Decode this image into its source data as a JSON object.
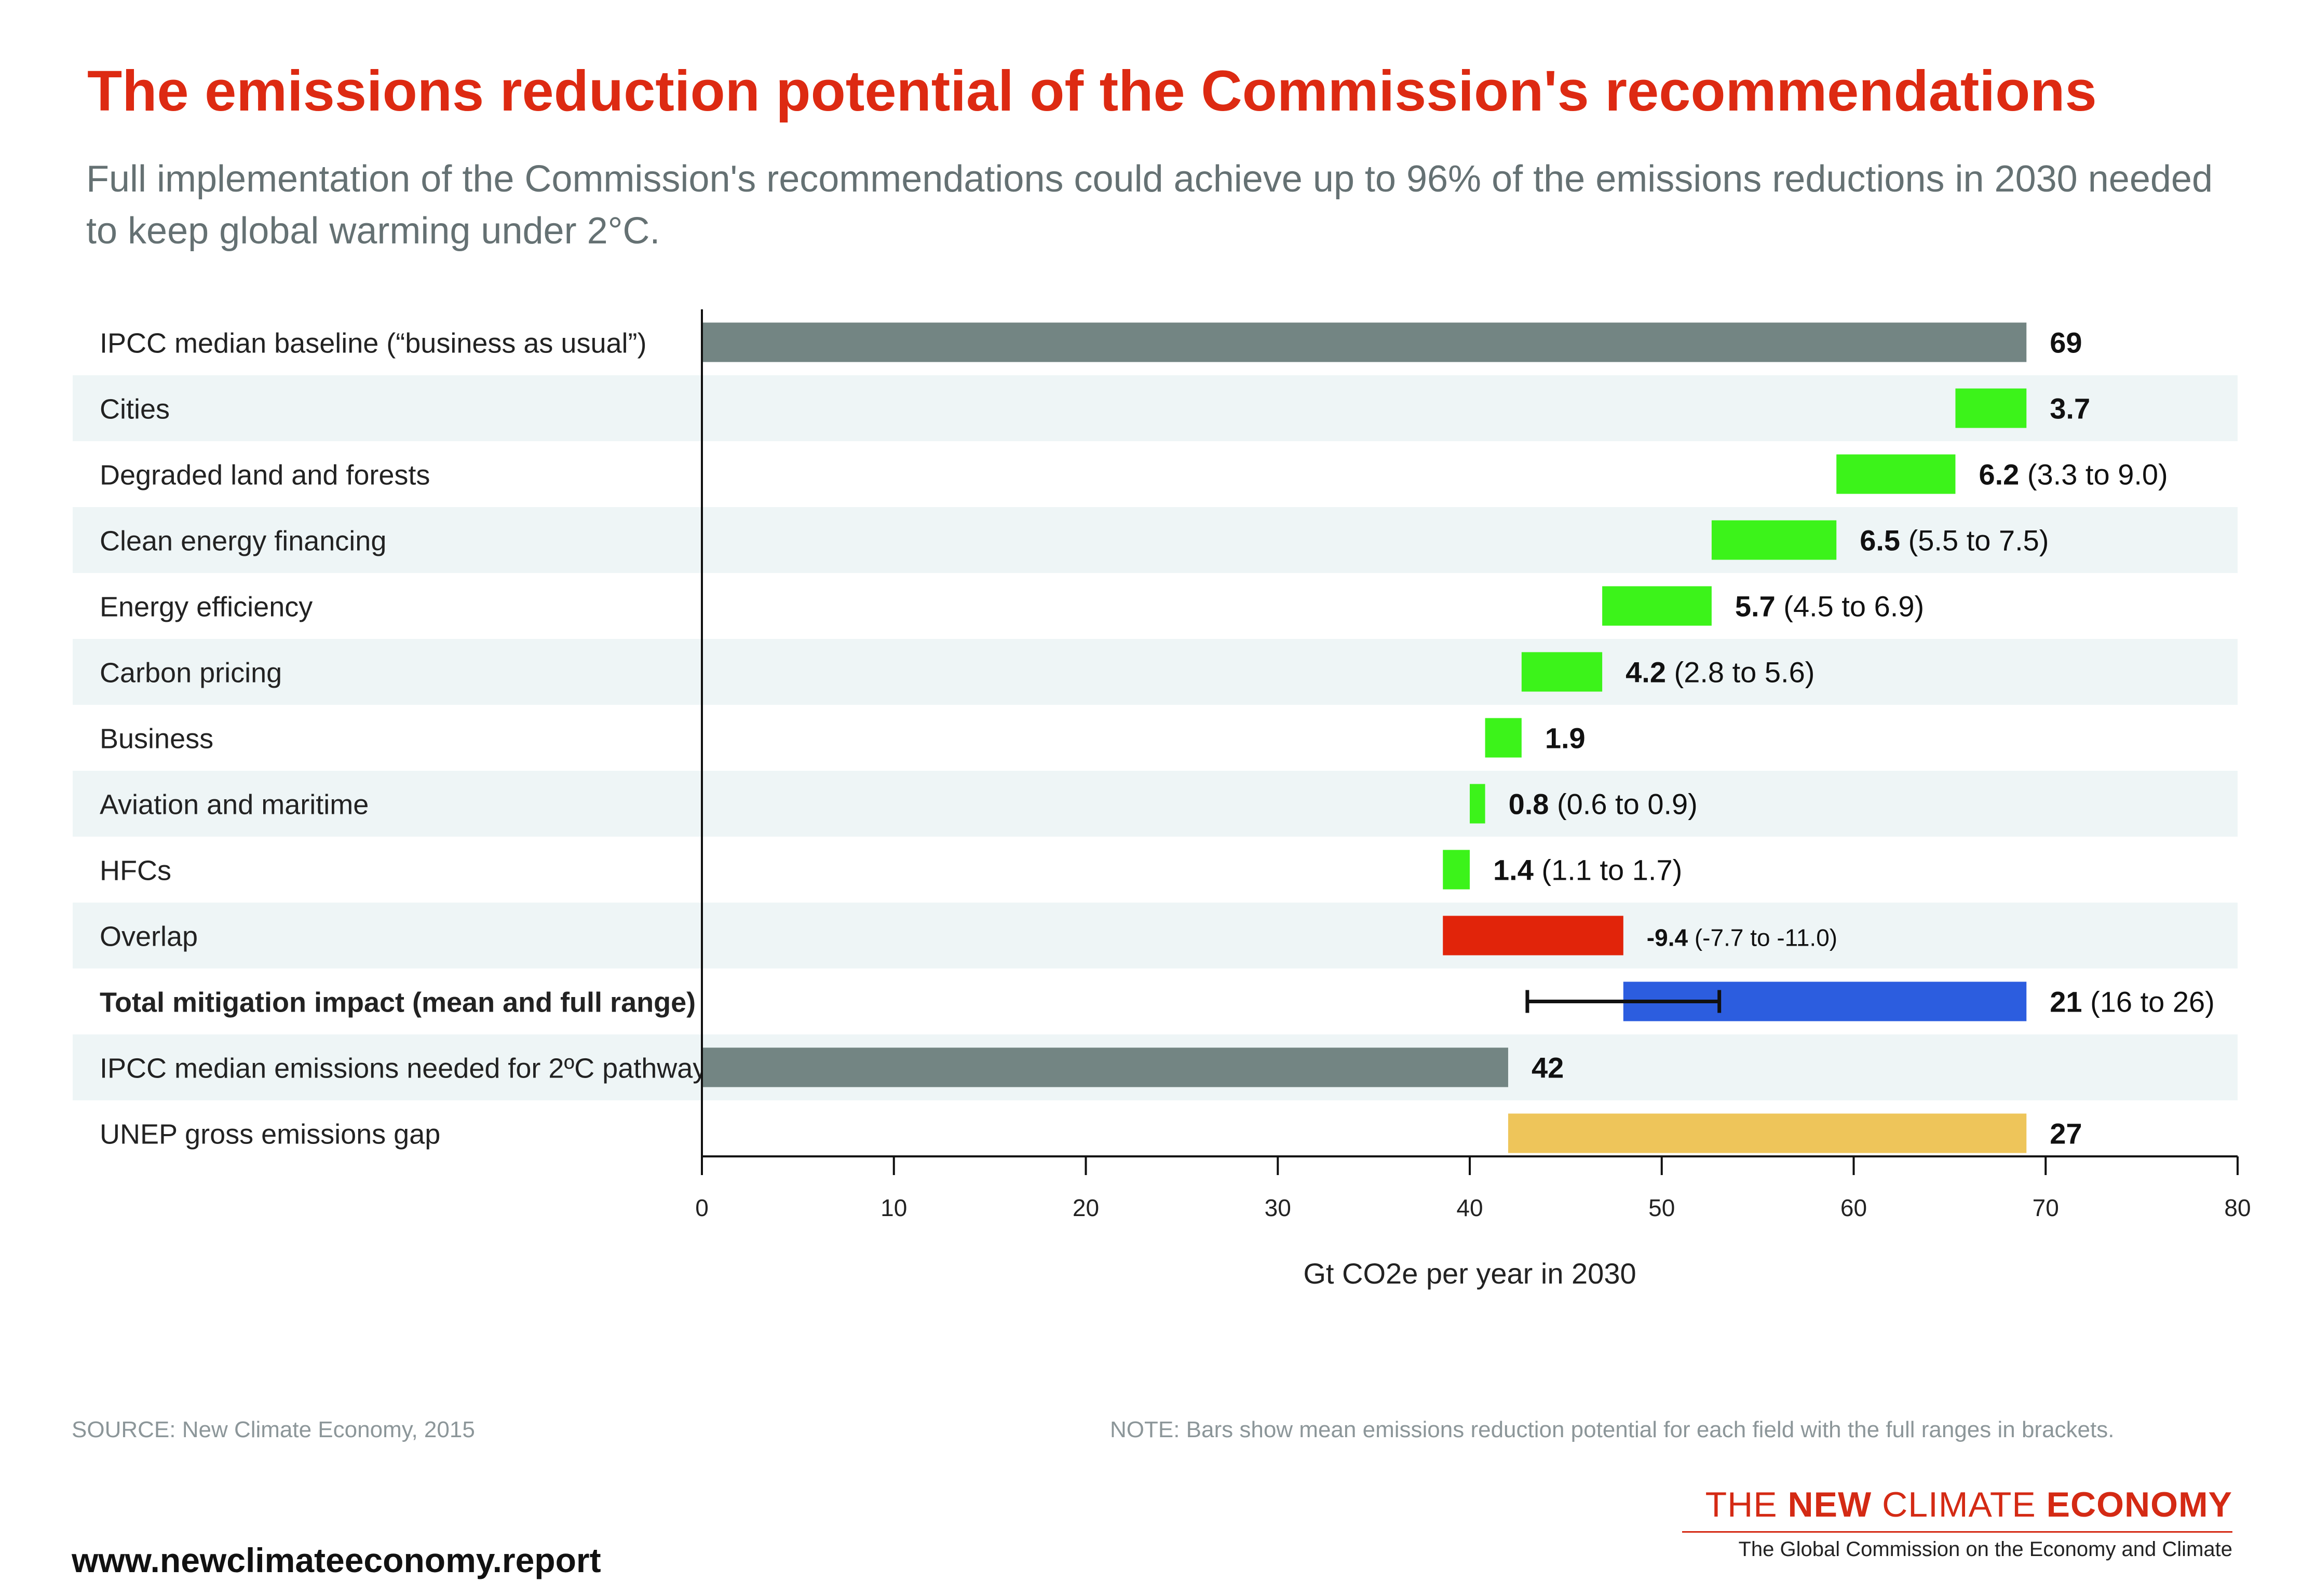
{
  "title": "The emissions reduction potential of the Commission's recommendations",
  "subtitle": "Full implementation of the Commission's recommendations could achieve up to 96% of the emissions reductions in 2030 needed to keep global warming under 2°C.",
  "source": "SOURCE: New Climate Economy, 2015",
  "note": "NOTE: Bars show mean emissions reduction potential for each field with the full ranges in brackets.",
  "website": "www.newclimateeconomy.report",
  "logo": {
    "part1": "THE ",
    "part2": "NEW",
    "part3": " CLIMATE ",
    "part4": "ECONOMY",
    "subtitle": "The Global Commission on the Economy and Climate"
  },
  "colors": {
    "title": "#dd2a12",
    "gray": "#738583",
    "green": "#3cf31a",
    "red": "#e1240a",
    "blue": "#2c5ddf",
    "yellow": "#eec55a",
    "band": "#eef5f6"
  },
  "chart_data": {
    "type": "bar",
    "orientation": "horizontal waterfall",
    "xlabel": "Gt CO2e per year in 2030",
    "xlim": [
      0,
      80
    ],
    "xticks": [
      0,
      10,
      20,
      30,
      40,
      50,
      60,
      70,
      80
    ],
    "rows": [
      {
        "label": "IPCC median baseline (“business as usual”)",
        "start": 0,
        "end": 69,
        "color": "gray",
        "value": "69",
        "range": ""
      },
      {
        "label": "Cities",
        "start": 65.3,
        "end": 69,
        "color": "green",
        "value": "3.7",
        "range": ""
      },
      {
        "label": "Degraded land and forests",
        "start": 59.1,
        "end": 65.3,
        "color": "green",
        "value": "6.2",
        "range": "(3.3 to 9.0)"
      },
      {
        "label": "Clean energy financing",
        "start": 52.6,
        "end": 59.1,
        "color": "green",
        "value": "6.5",
        "range": "(5.5 to 7.5)"
      },
      {
        "label": "Energy efficiency",
        "start": 46.9,
        "end": 52.6,
        "color": "green",
        "value": "5.7",
        "range": "(4.5 to 6.9)"
      },
      {
        "label": "Carbon pricing",
        "start": 42.7,
        "end": 46.9,
        "color": "green",
        "value": "4.2",
        "range": "(2.8 to 5.6)"
      },
      {
        "label": "Business",
        "start": 40.8,
        "end": 42.7,
        "color": "green",
        "value": "1.9",
        "range": ""
      },
      {
        "label": "Aviation and maritime",
        "start": 40.0,
        "end": 40.8,
        "color": "green",
        "value": "0.8",
        "range": "(0.6 to 0.9)"
      },
      {
        "label": "HFCs",
        "start": 38.6,
        "end": 40.0,
        "color": "green",
        "value": "1.4",
        "range": "(1.1 to 1.7)"
      },
      {
        "label": "Overlap",
        "start": 38.6,
        "end": 48.0,
        "color": "red",
        "value": "-9.4",
        "range": "(-7.7 to -11.0)"
      },
      {
        "label": "Total mitigation impact (mean and full range)",
        "start": 48.0,
        "end": 69,
        "color": "blue",
        "value": "21",
        "range": "(16 to 26)",
        "bold": true,
        "error_bar": [
          43,
          53
        ]
      },
      {
        "label": "IPCC median emissions needed for 2ºC pathway",
        "start": 0,
        "end": 42,
        "color": "gray",
        "value": "42",
        "range": ""
      },
      {
        "label": "UNEP gross emissions gap",
        "start": 42,
        "end": 69,
        "color": "yellow",
        "value": "27",
        "range": ""
      }
    ]
  }
}
